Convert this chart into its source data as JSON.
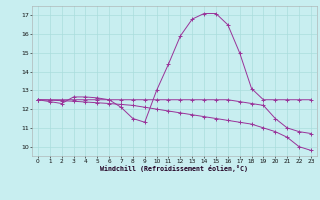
{
  "xlabel": "Windchill (Refroidissement éolien,°C)",
  "ylabel": "",
  "background_color": "#c8eef0",
  "grid_color": "#aadddd",
  "line_color": "#993399",
  "xlim": [
    -0.5,
    23.5
  ],
  "ylim": [
    9.5,
    17.5
  ],
  "xticks": [
    0,
    1,
    2,
    3,
    4,
    5,
    6,
    7,
    8,
    9,
    10,
    11,
    12,
    13,
    14,
    15,
    16,
    17,
    18,
    19,
    20,
    21,
    22,
    23
  ],
  "yticks": [
    10,
    11,
    12,
    13,
    14,
    15,
    16,
    17
  ],
  "line1_x": [
    0,
    1,
    2,
    3,
    4,
    5,
    6,
    7,
    8,
    9,
    10,
    11,
    12,
    13,
    14,
    15,
    16,
    17,
    18,
    19,
    20,
    21,
    22,
    23
  ],
  "line1_y": [
    12.5,
    12.4,
    12.3,
    12.65,
    12.65,
    12.6,
    12.5,
    12.1,
    11.5,
    11.3,
    13.0,
    14.4,
    15.9,
    16.8,
    17.1,
    17.1,
    16.5,
    15.0,
    13.1,
    12.5,
    12.5,
    12.5,
    12.5,
    12.5
  ],
  "line2_x": [
    0,
    1,
    2,
    3,
    4,
    5,
    6,
    7,
    8,
    9,
    10,
    11,
    12,
    13,
    14,
    15,
    16,
    17,
    18,
    19,
    20,
    21,
    22,
    23
  ],
  "line2_y": [
    12.5,
    12.5,
    12.5,
    12.5,
    12.5,
    12.5,
    12.5,
    12.5,
    12.5,
    12.5,
    12.5,
    12.5,
    12.5,
    12.5,
    12.5,
    12.5,
    12.5,
    12.4,
    12.3,
    12.2,
    11.5,
    11.0,
    10.8,
    10.7
  ],
  "line3_x": [
    0,
    1,
    2,
    3,
    4,
    5,
    6,
    7,
    8,
    9,
    10,
    11,
    12,
    13,
    14,
    15,
    16,
    17,
    18,
    19,
    20,
    21,
    22,
    23
  ],
  "line3_y": [
    12.5,
    12.48,
    12.45,
    12.42,
    12.38,
    12.34,
    12.3,
    12.25,
    12.2,
    12.1,
    12.0,
    11.9,
    11.8,
    11.7,
    11.6,
    11.5,
    11.4,
    11.3,
    11.2,
    11.0,
    10.8,
    10.5,
    10.0,
    9.8
  ]
}
